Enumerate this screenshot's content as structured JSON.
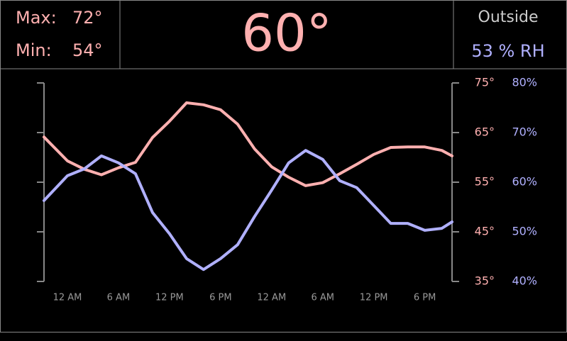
{
  "header": {
    "max_label": "Max:",
    "max_value": "72°",
    "min_label": "Min:",
    "min_value": "54°",
    "current": "60°",
    "outside_label": "Outside",
    "outside_value": "53 % RH"
  },
  "chart_data": {
    "type": "line",
    "x": [
      -2.75,
      0,
      2,
      4,
      6,
      8,
      10,
      12,
      14,
      16,
      18,
      20,
      22,
      24,
      26,
      28,
      30,
      32,
      34,
      36,
      38,
      40,
      42,
      44,
      45.2
    ],
    "xlim": [
      -2.75,
      45.2
    ],
    "xticks": [
      {
        "value": 0,
        "label": "12 AM"
      },
      {
        "value": 6,
        "label": "6 AM"
      },
      {
        "value": 12,
        "label": "12 PM"
      },
      {
        "value": 18,
        "label": "6 PM"
      },
      {
        "value": 24,
        "label": "12 AM"
      },
      {
        "value": 30,
        "label": "6 AM"
      },
      {
        "value": 36,
        "label": "12 PM"
      },
      {
        "value": 42,
        "label": "6 PM"
      }
    ],
    "ylim": [
      35,
      75
    ],
    "yticks": [
      {
        "value": 35,
        "label": "35°"
      },
      {
        "value": 45,
        "label": "45°"
      },
      {
        "value": 55,
        "label": "55°"
      },
      {
        "value": 65,
        "label": "65°"
      },
      {
        "value": 75,
        "label": "75°"
      }
    ],
    "y2lim": [
      40,
      80
    ],
    "y2ticks": [
      {
        "value": 40,
        "label": "40%"
      },
      {
        "value": 50,
        "label": "50%"
      },
      {
        "value": 60,
        "label": "60%"
      },
      {
        "value": 70,
        "label": "70%"
      },
      {
        "value": 80,
        "label": "80%"
      }
    ],
    "series": [
      {
        "color": "#ffb0b0",
        "axis": "y",
        "values": [
          64.1,
          59.3,
          57.6,
          56.5,
          57.9,
          59,
          64,
          67.3,
          71,
          70.6,
          69.6,
          66.7,
          61.7,
          58.1,
          56,
          54.3,
          54.9,
          56.7,
          58.6,
          60.6,
          62,
          62.1,
          62.1,
          61.4,
          60.3
        ]
      },
      {
        "color": "#b0b0ff",
        "axis": "y2",
        "values": [
          56.3,
          61.3,
          62.7,
          65.3,
          63.9,
          61.7,
          53.9,
          49.6,
          44.6,
          42.4,
          44.6,
          47.4,
          53.1,
          58.4,
          63.9,
          66.4,
          64.6,
          60.3,
          58.9,
          55.3,
          51.7,
          51.7,
          50.3,
          50.7,
          52
        ]
      }
    ]
  }
}
